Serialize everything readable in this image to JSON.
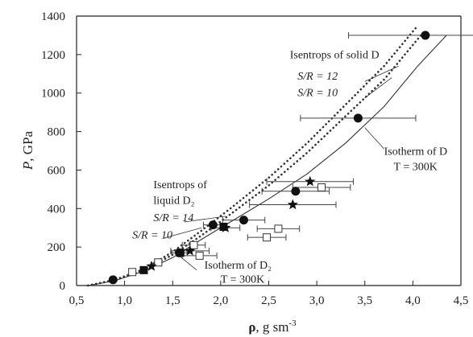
{
  "chart_data": {
    "type": "scatter",
    "title": "",
    "xlabel_symbol": "ρ",
    "xlabel_units": ", g sm",
    "xlabel_exp": "-3",
    "ylabel_symbol": "P",
    "ylabel_units": ", GPa",
    "xlim": [
      0.5,
      4.5
    ],
    "ylim": [
      0,
      1400
    ],
    "x_ticks": [
      {
        "value": 0.5,
        "label": "0,5"
      },
      {
        "value": 1.0,
        "label": "1,0"
      },
      {
        "value": 1.5,
        "label": "1,5"
      },
      {
        "value": 2.0,
        "label": "2,0"
      },
      {
        "value": 2.5,
        "label": "2,5"
      },
      {
        "value": 3.0,
        "label": "3,0"
      },
      {
        "value": 3.5,
        "label": "3,5"
      },
      {
        "value": 4.0,
        "label": "4,0"
      },
      {
        "value": 4.5,
        "label": "4,5"
      }
    ],
    "y_ticks": [
      {
        "value": 0,
        "label": "0"
      },
      {
        "value": 200,
        "label": "200"
      },
      {
        "value": 400,
        "label": "400"
      },
      {
        "value": 600,
        "label": "600"
      },
      {
        "value": 800,
        "label": "800"
      },
      {
        "value": 1000,
        "label": "1000"
      },
      {
        "value": 1200,
        "label": "1200"
      },
      {
        "value": 1400,
        "label": "1400"
      }
    ],
    "grid": false,
    "curves": [
      {
        "style": "solid",
        "points": [
          [
            0.62,
            0
          ],
          [
            0.9,
            25
          ],
          [
            1.2,
            75
          ],
          [
            1.5,
            145
          ],
          [
            1.8,
            240
          ],
          [
            2.1,
            330
          ],
          [
            2.5,
            450
          ],
          [
            2.9,
            580
          ],
          [
            3.3,
            740
          ],
          [
            3.7,
            930
          ],
          [
            4.05,
            1140
          ],
          [
            4.35,
            1300
          ]
        ]
      },
      {
        "style": "dotted",
        "points": [
          [
            0.62,
            0
          ],
          [
            0.9,
            28
          ],
          [
            1.2,
            80
          ],
          [
            1.5,
            160
          ],
          [
            1.8,
            260
          ],
          [
            2.1,
            370
          ],
          [
            2.5,
            520
          ],
          [
            2.9,
            690
          ],
          [
            3.3,
            880
          ],
          [
            3.7,
            1070
          ],
          [
            4.1,
            1310
          ]
        ]
      },
      {
        "style": "dotted",
        "points": [
          [
            0.62,
            0
          ],
          [
            0.9,
            30
          ],
          [
            1.2,
            85
          ],
          [
            1.5,
            175
          ],
          [
            1.8,
            285
          ],
          [
            2.1,
            400
          ],
          [
            2.5,
            560
          ],
          [
            2.9,
            740
          ],
          [
            3.3,
            940
          ],
          [
            3.7,
            1140
          ],
          [
            4.05,
            1350
          ]
        ]
      }
    ],
    "series": [
      {
        "marker": "filled-circle",
        "points": [
          {
            "x": 0.88,
            "y": 30,
            "xerr": 0
          },
          {
            "x": 1.57,
            "y": 170,
            "xerr": 0.08
          },
          {
            "x": 1.92,
            "y": 315,
            "xerr": 0.1
          },
          {
            "x": 2.24,
            "y": 340,
            "xerr": 0.22
          },
          {
            "x": 2.78,
            "y": 490,
            "xerr": 0.35
          },
          {
            "x": 3.43,
            "y": 870,
            "xerr": 0.6
          },
          {
            "x": 4.13,
            "y": 1300,
            "xerr": 0.8
          }
        ]
      },
      {
        "marker": "filled-square",
        "points": [
          {
            "x": 1.2,
            "y": 80,
            "xerr": 0
          },
          {
            "x": 1.58,
            "y": 170,
            "xerr": 0
          },
          {
            "x": 2.03,
            "y": 305,
            "xerr": 0
          }
        ]
      },
      {
        "marker": "open-square",
        "points": [
          {
            "x": 1.08,
            "y": 70,
            "xerr": 0
          },
          {
            "x": 1.35,
            "y": 120,
            "xerr": 0
          },
          {
            "x": 1.72,
            "y": 210,
            "xerr": 0.12
          },
          {
            "x": 1.78,
            "y": 155,
            "xerr": 0.18
          },
          {
            "x": 2.48,
            "y": 250,
            "xerr": 0.2
          },
          {
            "x": 2.6,
            "y": 295,
            "xerr": 0.22
          },
          {
            "x": 3.05,
            "y": 510,
            "xerr": 0.3
          }
        ]
      },
      {
        "marker": "star",
        "points": [
          {
            "x": 1.28,
            "y": 100,
            "xerr": 0
          },
          {
            "x": 1.68,
            "y": 180,
            "xerr": 0.2
          },
          {
            "x": 2.05,
            "y": 300,
            "xerr": 0.15
          },
          {
            "x": 2.75,
            "y": 420,
            "xerr": 0.45
          },
          {
            "x": 2.93,
            "y": 540,
            "xerr": 0.45
          }
        ]
      }
    ],
    "annotations": [
      {
        "text": "Isentrops of solid  D",
        "style": "normal",
        "x": 2.72,
        "y": 1180
      },
      {
        "text": "S/R = 12",
        "style": "italic",
        "x": 2.8,
        "y": 1070
      },
      {
        "text": "S/R = 10",
        "style": "italic",
        "x": 2.8,
        "y": 985
      },
      {
        "text": "Isotherm of  D",
        "style": "normal",
        "x": 3.7,
        "y": 680
      },
      {
        "text": "T = 300K",
        "style": "normal",
        "x": 3.8,
        "y": 600
      },
      {
        "text": "Isentrops of",
        "style": "normal",
        "x": 1.3,
        "y": 505
      },
      {
        "text": "liquid  D₂",
        "style": "normal",
        "x": 1.3,
        "y": 425
      },
      {
        "text": "S/R = 14",
        "style": "italic",
        "x": 1.3,
        "y": 335
      },
      {
        "text": "S/R = 10",
        "style": "italic",
        "x": 1.08,
        "y": 245
      },
      {
        "text": "Isotherm of  D₂",
        "style": "normal",
        "x": 1.83,
        "y": 88
      },
      {
        "text": "T = 300K",
        "style": "normal",
        "x": 2.0,
        "y": 15
      }
    ]
  }
}
